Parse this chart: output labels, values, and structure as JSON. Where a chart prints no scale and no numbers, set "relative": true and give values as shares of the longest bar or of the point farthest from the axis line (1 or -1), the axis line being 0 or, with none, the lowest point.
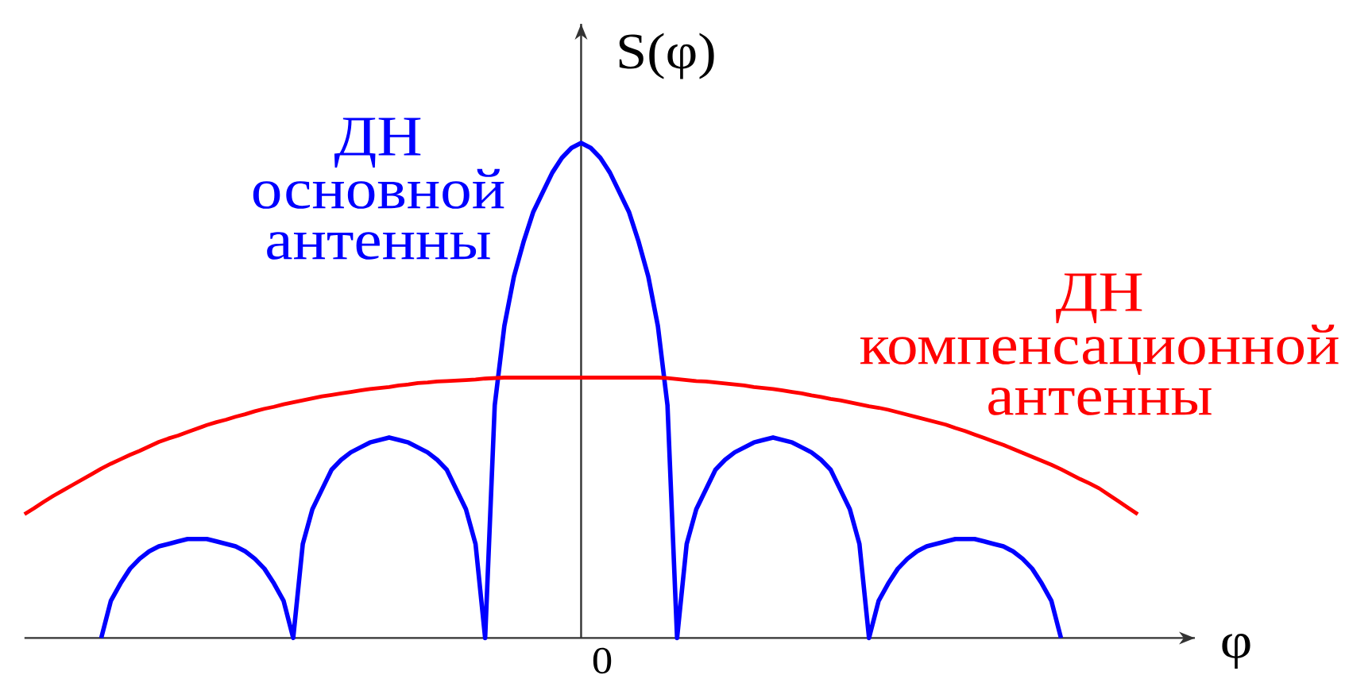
{
  "chart_data": {
    "type": "line",
    "xlabel": "φ",
    "ylabel": "S(φ)",
    "relative": true,
    "marker": "none",
    "annotations": [
      "0"
    ],
    "categories": [
      null,
      null,
      null,
      null,
      null,
      null,
      null,
      null,
      null,
      null,
      null,
      null,
      null,
      null,
      null,
      null,
      null,
      null,
      null,
      null,
      null,
      null,
      null,
      null,
      null,
      null,
      null,
      null,
      null,
      null,
      null,
      null,
      null,
      null,
      null,
      null,
      null,
      null,
      null,
      null,
      null,
      null,
      null,
      null,
      null,
      null,
      null,
      null,
      null,
      null,
      null,
      null,
      null,
      null,
      null,
      null,
      null,
      null,
      null,
      null,
      null,
      null,
      null,
      null,
      null,
      null,
      null,
      null,
      null,
      null,
      null,
      null,
      null,
      null,
      null,
      null,
      null,
      null,
      null,
      null,
      null,
      null,
      null,
      null,
      null,
      null,
      null,
      null,
      null,
      null,
      null,
      null,
      null,
      null,
      null,
      null,
      null,
      null,
      null,
      null,
      null,
      null,
      null,
      null,
      null,
      null,
      null,
      null,
      null,
      null,
      null,
      null,
      null,
      null,
      null,
      null,
      null
    ],
    "series": [
      {
        "name": "ДН основной антенны",
        "color": "#0000ff",
        "values": [
          null,
          null,
          null,
          null,
          null,
          null,
          null,
          null,
          0,
          0.075,
          0.11,
          0.14,
          0.16,
          0.175,
          0.185,
          0.19,
          0.195,
          0.2,
          0.2,
          0.2,
          0.195,
          0.19,
          0.185,
          0.175,
          0.16,
          0.14,
          0.11,
          0.075,
          0,
          0.19,
          0.26,
          0.3,
          0.34,
          0.36,
          0.375,
          0.385,
          0.395,
          0.4,
          0.405,
          0.4,
          0.395,
          0.385,
          0.375,
          0.36,
          0.34,
          0.3,
          0.26,
          0.19,
          0,
          0.47,
          0.63,
          0.73,
          0.8,
          0.86,
          0.9,
          0.94,
          0.97,
          0.99,
          1,
          0.99,
          0.97,
          0.94,
          0.9,
          0.86,
          0.8,
          0.73,
          0.63,
          0.47,
          0,
          0.19,
          0.26,
          0.3,
          0.34,
          0.36,
          0.375,
          0.385,
          0.395,
          0.4,
          0.405,
          0.4,
          0.395,
          0.385,
          0.375,
          0.36,
          0.34,
          0.3,
          0.26,
          0.19,
          0,
          0.075,
          0.11,
          0.14,
          0.16,
          0.175,
          0.185,
          0.19,
          0.195,
          0.2,
          0.2,
          0.2,
          0.195,
          0.19,
          0.185,
          0.175,
          0.16,
          0.14,
          0.11,
          0.075,
          0,
          null,
          null,
          null,
          null,
          null,
          null,
          null,
          null
        ]
      },
      {
        "name": "ДН компенсационной антенны",
        "color": "#ff0000",
        "values": [
          0.25,
          0.262,
          0.275,
          0.287,
          0.298,
          0.309,
          0.32,
          0.331,
          0.342,
          0.352,
          0.361,
          0.37,
          0.378,
          0.387,
          0.396,
          0.403,
          0.409,
          0.416,
          0.423,
          0.43,
          0.436,
          0.441,
          0.447,
          0.452,
          0.458,
          0.463,
          0.467,
          0.472,
          0.476,
          0.48,
          0.484,
          0.488,
          0.491,
          0.494,
          0.497,
          0.5,
          0.503,
          0.505,
          0.507,
          0.51,
          0.512,
          0.515,
          0.516,
          0.518,
          0.519,
          0.52,
          0.521,
          0.522,
          0.524,
          0.525,
          0.526,
          0.526,
          0.526,
          0.526,
          0.526,
          0.526,
          0.526,
          0.526,
          0.526,
          0.526,
          0.526,
          0.526,
          0.526,
          0.526,
          0.526,
          0.526,
          0.526,
          0.525,
          0.523,
          0.521,
          0.519,
          0.518,
          0.516,
          0.514,
          0.512,
          0.51,
          0.507,
          0.505,
          0.503,
          0.5,
          0.497,
          0.494,
          0.49,
          0.487,
          0.483,
          0.48,
          0.476,
          0.472,
          0.468,
          0.465,
          0.461,
          0.456,
          0.451,
          0.446,
          0.441,
          0.436,
          0.431,
          0.424,
          0.418,
          0.411,
          0.404,
          0.397,
          0.39,
          0.382,
          0.374,
          0.366,
          0.358,
          0.35,
          0.341,
          0.331,
          0.321,
          0.312,
          0.302,
          0.289,
          0.276,
          0.263,
          0.25
        ]
      }
    ]
  }
}
